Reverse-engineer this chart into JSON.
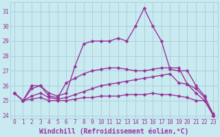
{
  "background_color": "#c8eaf0",
  "grid_color": "#a8ccd8",
  "line_color": "#993399",
  "marker_color": "#993399",
  "xlabel": "Windchill (Refroidissement éolien,°C)",
  "xlim": [
    -0.5,
    23.5
  ],
  "ylim": [
    23.8,
    31.6
  ],
  "yticks": [
    24,
    25,
    26,
    27,
    28,
    29,
    30,
    31
  ],
  "xticks": [
    0,
    1,
    2,
    3,
    4,
    5,
    6,
    7,
    8,
    9,
    10,
    11,
    12,
    13,
    14,
    15,
    16,
    17,
    18,
    19,
    20,
    21,
    22,
    23
  ],
  "series": [
    {
      "x": [
        0,
        1,
        2,
        3,
        4,
        5,
        6,
        7,
        8,
        9,
        10,
        11,
        12,
        13,
        14,
        15,
        16,
        17,
        18,
        19,
        20,
        21,
        22,
        23
      ],
      "y": [
        25.5,
        25.0,
        26.0,
        26.0,
        25.5,
        25.3,
        25.5,
        27.3,
        28.8,
        29.0,
        29.0,
        29.0,
        29.2,
        29.0,
        30.0,
        31.2,
        30.0,
        29.0,
        27.1,
        27.0,
        27.0,
        26.0,
        25.3,
        24.0
      ]
    },
    {
      "x": [
        0,
        1,
        2,
        3,
        4,
        5,
        6,
        7,
        8,
        9,
        10,
        11,
        12,
        13,
        14,
        15,
        16,
        17,
        18,
        19,
        20,
        21,
        22,
        23
      ],
      "y": [
        25.5,
        25.0,
        25.8,
        26.0,
        25.3,
        25.2,
        26.2,
        26.5,
        26.8,
        27.0,
        27.1,
        27.2,
        27.2,
        27.1,
        27.0,
        27.0,
        27.1,
        27.2,
        27.2,
        27.2,
        26.1,
        25.8,
        25.2,
        24.1
      ]
    },
    {
      "x": [
        0,
        1,
        2,
        3,
        4,
        5,
        6,
        7,
        8,
        9,
        10,
        11,
        12,
        13,
        14,
        15,
        16,
        17,
        18,
        19,
        20,
        21,
        22,
        23
      ],
      "y": [
        25.5,
        25.0,
        25.3,
        25.5,
        25.2,
        25.1,
        25.2,
        25.4,
        25.6,
        25.8,
        26.0,
        26.1,
        26.2,
        26.3,
        26.4,
        26.5,
        26.6,
        26.7,
        26.8,
        26.2,
        26.1,
        25.5,
        25.0,
        24.0
      ]
    },
    {
      "x": [
        0,
        1,
        2,
        3,
        4,
        5,
        6,
        7,
        8,
        9,
        10,
        11,
        12,
        13,
        14,
        15,
        16,
        17,
        18,
        19,
        20,
        21,
        22,
        23
      ],
      "y": [
        25.5,
        25.0,
        25.1,
        25.2,
        25.0,
        25.0,
        25.0,
        25.1,
        25.2,
        25.2,
        25.3,
        25.3,
        25.3,
        25.4,
        25.4,
        25.4,
        25.5,
        25.4,
        25.4,
        25.3,
        25.2,
        25.0,
        25.0,
        24.0
      ]
    }
  ],
  "font_color": "#993399",
  "tick_fontsize": 5.8,
  "xlabel_fontsize": 7.0,
  "linewidth": 1.0,
  "markersize": 2.5
}
